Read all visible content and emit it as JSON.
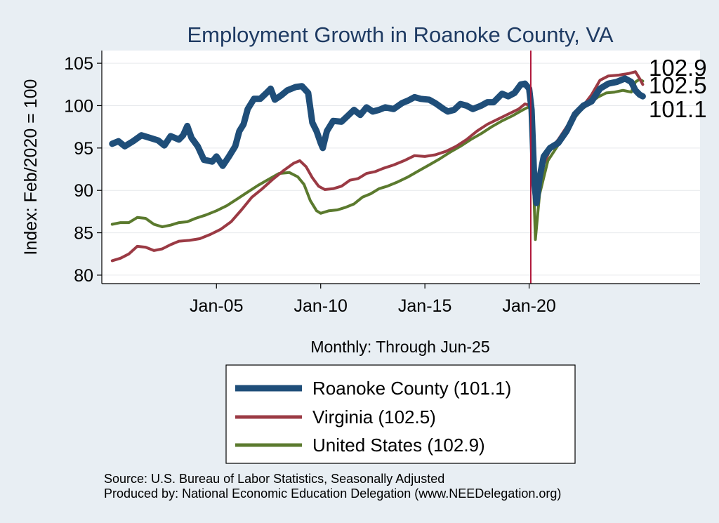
{
  "chart_data": {
    "type": "line",
    "title": "Employment Growth in Roanoke  County, VA",
    "ylabel": "Index: Feb/2020 = 100",
    "xlabel": "Monthly: Through Jun-25",
    "ylim": [
      79,
      106.5
    ],
    "xlim": [
      1999.5,
      2028.2
    ],
    "yticks": [
      80,
      85,
      90,
      95,
      100,
      105
    ],
    "xticks": [
      {
        "value": 2005,
        "label": "Jan-05"
      },
      {
        "value": 2010,
        "label": "Jan-10"
      },
      {
        "value": 2015,
        "label": "Jan-15"
      },
      {
        "value": 2020,
        "label": "Jan-20"
      }
    ],
    "reference_line": {
      "x": 2020.08,
      "color": "#b0173a"
    },
    "grid": true,
    "legend_position": "bottom",
    "series": [
      {
        "name": "Roanoke  County (101.1)",
        "color": "#1f4e79",
        "end_label": "101.1",
        "points": [
          [
            2000.0,
            95.5
          ],
          [
            2000.3,
            95.8
          ],
          [
            2000.6,
            95.2
          ],
          [
            2001.0,
            95.8
          ],
          [
            2001.4,
            96.5
          ],
          [
            2001.8,
            96.2
          ],
          [
            2002.2,
            95.9
          ],
          [
            2002.5,
            95.3
          ],
          [
            2002.8,
            96.4
          ],
          [
            2003.2,
            96.0
          ],
          [
            2003.4,
            96.5
          ],
          [
            2003.6,
            97.6
          ],
          [
            2003.8,
            96.2
          ],
          [
            2004.1,
            95.2
          ],
          [
            2004.4,
            93.6
          ],
          [
            2004.8,
            93.4
          ],
          [
            2005.0,
            94.0
          ],
          [
            2005.3,
            92.9
          ],
          [
            2005.6,
            94.0
          ],
          [
            2005.9,
            95.2
          ],
          [
            2006.1,
            97.0
          ],
          [
            2006.3,
            97.8
          ],
          [
            2006.5,
            99.6
          ],
          [
            2006.8,
            100.8
          ],
          [
            2007.1,
            100.8
          ],
          [
            2007.4,
            101.5
          ],
          [
            2007.6,
            102.0
          ],
          [
            2007.8,
            100.7
          ],
          [
            2008.1,
            101.2
          ],
          [
            2008.4,
            101.8
          ],
          [
            2008.8,
            102.2
          ],
          [
            2009.1,
            102.3
          ],
          [
            2009.4,
            101.5
          ],
          [
            2009.6,
            98.0
          ],
          [
            2009.8,
            97.0
          ],
          [
            2010.0,
            95.6
          ],
          [
            2010.1,
            95.0
          ],
          [
            2010.3,
            97.0
          ],
          [
            2010.6,
            98.2
          ],
          [
            2011.0,
            98.1
          ],
          [
            2011.3,
            98.8
          ],
          [
            2011.6,
            99.5
          ],
          [
            2011.9,
            98.9
          ],
          [
            2012.2,
            99.8
          ],
          [
            2012.5,
            99.3
          ],
          [
            2012.8,
            99.5
          ],
          [
            2013.1,
            99.8
          ],
          [
            2013.5,
            99.6
          ],
          [
            2013.9,
            100.3
          ],
          [
            2014.2,
            100.6
          ],
          [
            2014.5,
            101.0
          ],
          [
            2014.8,
            100.8
          ],
          [
            2015.2,
            100.7
          ],
          [
            2015.5,
            100.3
          ],
          [
            2015.9,
            99.6
          ],
          [
            2016.1,
            99.3
          ],
          [
            2016.4,
            99.5
          ],
          [
            2016.7,
            100.2
          ],
          [
            2017.0,
            100.0
          ],
          [
            2017.3,
            99.6
          ],
          [
            2017.7,
            100.0
          ],
          [
            2018.0,
            100.4
          ],
          [
            2018.3,
            100.4
          ],
          [
            2018.7,
            101.4
          ],
          [
            2019.0,
            101.1
          ],
          [
            2019.3,
            101.5
          ],
          [
            2019.6,
            102.5
          ],
          [
            2019.8,
            102.6
          ],
          [
            2020.0,
            102.0
          ],
          [
            2020.12,
            99.5
          ],
          [
            2020.25,
            91.0
          ],
          [
            2020.35,
            88.5
          ],
          [
            2020.5,
            91.5
          ],
          [
            2020.7,
            94.0
          ],
          [
            2021.0,
            95.0
          ],
          [
            2021.4,
            95.6
          ],
          [
            2021.8,
            97.0
          ],
          [
            2022.2,
            99.0
          ],
          [
            2022.6,
            100.0
          ],
          [
            2023.0,
            100.5
          ],
          [
            2023.4,
            102.0
          ],
          [
            2023.8,
            102.6
          ],
          [
            2024.2,
            102.8
          ],
          [
            2024.6,
            103.2
          ],
          [
            2024.9,
            102.8
          ],
          [
            2025.1,
            101.8
          ],
          [
            2025.3,
            101.3
          ],
          [
            2025.45,
            101.1
          ]
        ]
      },
      {
        "name": "Virginia (102.5)",
        "color": "#9b3a44",
        "end_label": "102.5",
        "points": [
          [
            2000.0,
            81.7
          ],
          [
            2000.4,
            82.0
          ],
          [
            2000.8,
            82.5
          ],
          [
            2001.2,
            83.4
          ],
          [
            2001.6,
            83.3
          ],
          [
            2002.0,
            82.9
          ],
          [
            2002.4,
            83.1
          ],
          [
            2002.8,
            83.6
          ],
          [
            2003.2,
            84.0
          ],
          [
            2003.7,
            84.1
          ],
          [
            2004.2,
            84.3
          ],
          [
            2004.7,
            84.8
          ],
          [
            2005.2,
            85.4
          ],
          [
            2005.7,
            86.3
          ],
          [
            2006.2,
            87.7
          ],
          [
            2006.7,
            89.2
          ],
          [
            2007.2,
            90.2
          ],
          [
            2007.7,
            91.3
          ],
          [
            2008.2,
            92.3
          ],
          [
            2008.7,
            93.2
          ],
          [
            2009.0,
            93.5
          ],
          [
            2009.3,
            92.8
          ],
          [
            2009.6,
            91.5
          ],
          [
            2009.9,
            90.5
          ],
          [
            2010.2,
            90.1
          ],
          [
            2010.6,
            90.2
          ],
          [
            2011.0,
            90.5
          ],
          [
            2011.4,
            91.2
          ],
          [
            2011.8,
            91.4
          ],
          [
            2012.2,
            92.0
          ],
          [
            2012.6,
            92.2
          ],
          [
            2013.0,
            92.6
          ],
          [
            2013.5,
            93.0
          ],
          [
            2014.0,
            93.5
          ],
          [
            2014.5,
            94.1
          ],
          [
            2015.0,
            94.0
          ],
          [
            2015.5,
            94.2
          ],
          [
            2016.0,
            94.6
          ],
          [
            2016.5,
            95.2
          ],
          [
            2017.0,
            96.0
          ],
          [
            2017.5,
            97.0
          ],
          [
            2018.0,
            97.8
          ],
          [
            2018.5,
            98.4
          ],
          [
            2019.0,
            99.0
          ],
          [
            2019.5,
            99.6
          ],
          [
            2019.8,
            100.2
          ],
          [
            2020.1,
            100.0
          ],
          [
            2020.2,
            94.0
          ],
          [
            2020.35,
            89.0
          ],
          [
            2020.6,
            92.5
          ],
          [
            2021.0,
            94.8
          ],
          [
            2021.4,
            96.0
          ],
          [
            2021.8,
            97.5
          ],
          [
            2022.2,
            99.0
          ],
          [
            2022.6,
            100.0
          ],
          [
            2023.0,
            101.3
          ],
          [
            2023.4,
            103.0
          ],
          [
            2023.8,
            103.5
          ],
          [
            2024.3,
            103.6
          ],
          [
            2024.8,
            103.8
          ],
          [
            2025.1,
            104.0
          ],
          [
            2025.3,
            103.2
          ],
          [
            2025.45,
            102.5
          ]
        ]
      },
      {
        "name": "United States (102.9)",
        "color": "#5b7a2e",
        "end_label": "102.9",
        "points": [
          [
            2000.0,
            86.0
          ],
          [
            2000.4,
            86.2
          ],
          [
            2000.8,
            86.2
          ],
          [
            2001.2,
            86.8
          ],
          [
            2001.6,
            86.7
          ],
          [
            2002.0,
            86.0
          ],
          [
            2002.4,
            85.7
          ],
          [
            2002.8,
            85.9
          ],
          [
            2003.2,
            86.2
          ],
          [
            2003.6,
            86.3
          ],
          [
            2004.0,
            86.7
          ],
          [
            2004.5,
            87.1
          ],
          [
            2005.0,
            87.6
          ],
          [
            2005.5,
            88.2
          ],
          [
            2006.0,
            89.0
          ],
          [
            2006.5,
            89.8
          ],
          [
            2007.0,
            90.6
          ],
          [
            2007.5,
            91.3
          ],
          [
            2008.0,
            92.0
          ],
          [
            2008.5,
            92.1
          ],
          [
            2008.9,
            91.6
          ],
          [
            2009.2,
            90.7
          ],
          [
            2009.5,
            88.8
          ],
          [
            2009.8,
            87.6
          ],
          [
            2010.0,
            87.3
          ],
          [
            2010.4,
            87.6
          ],
          [
            2010.8,
            87.7
          ],
          [
            2011.2,
            88.0
          ],
          [
            2011.6,
            88.4
          ],
          [
            2012.0,
            89.2
          ],
          [
            2012.4,
            89.6
          ],
          [
            2012.8,
            90.2
          ],
          [
            2013.2,
            90.5
          ],
          [
            2013.7,
            91.0
          ],
          [
            2014.2,
            91.6
          ],
          [
            2014.7,
            92.3
          ],
          [
            2015.2,
            93.0
          ],
          [
            2015.7,
            93.7
          ],
          [
            2016.2,
            94.5
          ],
          [
            2016.7,
            95.2
          ],
          [
            2017.2,
            96.0
          ],
          [
            2017.7,
            96.7
          ],
          [
            2018.2,
            97.5
          ],
          [
            2018.7,
            98.2
          ],
          [
            2019.2,
            98.8
          ],
          [
            2019.7,
            99.5
          ],
          [
            2020.1,
            100.0
          ],
          [
            2020.2,
            92.0
          ],
          [
            2020.3,
            84.2
          ],
          [
            2020.5,
            89.5
          ],
          [
            2020.9,
            93.5
          ],
          [
            2021.3,
            95.0
          ],
          [
            2021.7,
            96.5
          ],
          [
            2022.1,
            98.3
          ],
          [
            2022.5,
            99.5
          ],
          [
            2022.9,
            100.3
          ],
          [
            2023.3,
            101.0
          ],
          [
            2023.7,
            101.5
          ],
          [
            2024.1,
            101.6
          ],
          [
            2024.5,
            101.8
          ],
          [
            2024.9,
            101.6
          ],
          [
            2025.1,
            102.8
          ],
          [
            2025.3,
            103.1
          ],
          [
            2025.45,
            102.9
          ]
        ]
      }
    ],
    "source_lines": [
      "Source: U.S. Bureau of Labor Statistics, Seasonally Adjusted",
      "Produced by: National Economic Education Delegation (www.NEEDelegation.org)"
    ]
  }
}
